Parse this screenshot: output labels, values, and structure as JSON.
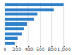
{
  "chart_data": {
    "type": "bar",
    "orientation": "horizontal",
    "categories": [
      null,
      null,
      null,
      null,
      null,
      null,
      null,
      null,
      null
    ],
    "values": [
      1000,
      830,
      560,
      490,
      370,
      330,
      290,
      220,
      170
    ],
    "color": "#2f80c8",
    "xlim": [
      0,
      1150
    ],
    "xticks": [
      0,
      200,
      400,
      600,
      800,
      {
        "value": 1000,
        "label": "1,000"
      }
    ],
    "grid": true
  }
}
